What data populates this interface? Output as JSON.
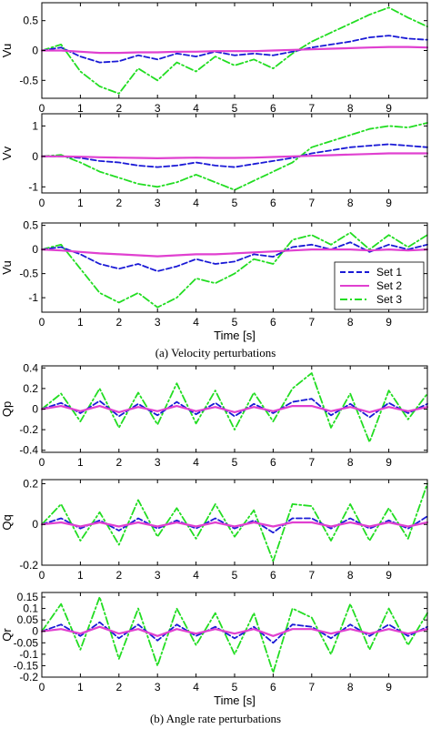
{
  "figure": {
    "captions": [
      "(a) Velocity perturbations",
      "(b) Angle rate perturbations"
    ]
  },
  "legend": {
    "entries": [
      {
        "label": "Set 1",
        "color": "#1a1ad6",
        "dash": "dashed"
      },
      {
        "label": "Set 2",
        "color": "#e040d0",
        "dash": "solid"
      },
      {
        "label": "Set 3",
        "color": "#22dd22",
        "dash": "dashdot"
      }
    ]
  },
  "chart_data": [
    {
      "type": "line",
      "ylabel": "Vu",
      "xlabel": "",
      "xlim": [
        0,
        10
      ],
      "ylim": [
        -0.8,
        0.8
      ],
      "xticks": [
        0,
        1,
        2,
        3,
        4,
        5,
        6,
        7,
        8,
        9
      ],
      "yticks": [
        -0.5,
        0,
        0.5
      ],
      "ytick_labels": [
        "-0.5",
        "0",
        "0.5"
      ],
      "x": [
        0,
        0.5,
        1,
        1.5,
        2,
        2.5,
        3,
        3.5,
        4,
        4.5,
        5,
        5.5,
        6,
        6.5,
        7,
        7.5,
        8,
        8.5,
        9,
        9.5,
        10
      ],
      "series": [
        {
          "name": "Set 1",
          "values": [
            0,
            0.05,
            -0.1,
            -0.2,
            -0.18,
            -0.08,
            -0.15,
            -0.05,
            -0.1,
            -0.02,
            -0.08,
            -0.05,
            -0.08,
            -0.02,
            0.05,
            0.1,
            0.15,
            0.22,
            0.25,
            0.2,
            0.18
          ]
        },
        {
          "name": "Set 2",
          "values": [
            0,
            0,
            -0.02,
            -0.04,
            -0.04,
            -0.03,
            -0.03,
            -0.02,
            -0.02,
            -0.01,
            -0.01,
            -0.01,
            0,
            0.01,
            0.02,
            0.03,
            0.04,
            0.05,
            0.06,
            0.06,
            0.05
          ]
        },
        {
          "name": "Set 3",
          "values": [
            0,
            0.1,
            -0.35,
            -0.6,
            -0.72,
            -0.3,
            -0.5,
            -0.2,
            -0.35,
            -0.1,
            -0.25,
            -0.15,
            -0.3,
            -0.05,
            0.15,
            0.3,
            0.45,
            0.6,
            0.72,
            0.55,
            0.4
          ]
        }
      ]
    },
    {
      "type": "line",
      "ylabel": "Vv",
      "xlabel": "",
      "xlim": [
        0,
        10
      ],
      "ylim": [
        -1.2,
        1.4
      ],
      "xticks": [
        0,
        1,
        2,
        3,
        4,
        5,
        6,
        7,
        8,
        9
      ],
      "yticks": [
        -1,
        0,
        1
      ],
      "ytick_labels": [
        "-1",
        "0",
        "1"
      ],
      "x": [
        0,
        0.5,
        1,
        1.5,
        2,
        2.5,
        3,
        3.5,
        4,
        4.5,
        5,
        5.5,
        6,
        6.5,
        7,
        7.5,
        8,
        8.5,
        9,
        9.5,
        10
      ],
      "series": [
        {
          "name": "Set 1",
          "values": [
            0,
            0,
            -0.05,
            -0.15,
            -0.2,
            -0.3,
            -0.35,
            -0.3,
            -0.2,
            -0.3,
            -0.35,
            -0.25,
            -0.15,
            -0.05,
            0.1,
            0.2,
            0.3,
            0.35,
            0.4,
            0.35,
            0.3
          ]
        },
        {
          "name": "Set 2",
          "values": [
            0,
            0,
            -0.01,
            -0.03,
            -0.04,
            -0.05,
            -0.06,
            -0.05,
            -0.04,
            -0.05,
            -0.05,
            -0.04,
            -0.02,
            0,
            0.02,
            0.04,
            0.06,
            0.08,
            0.1,
            0.1,
            0.1
          ]
        },
        {
          "name": "Set 3",
          "values": [
            0,
            0.05,
            -0.2,
            -0.5,
            -0.7,
            -0.9,
            -1.0,
            -0.85,
            -0.6,
            -0.85,
            -1.1,
            -0.8,
            -0.5,
            -0.2,
            0.3,
            0.5,
            0.7,
            0.9,
            1.0,
            0.95,
            1.1
          ]
        }
      ]
    },
    {
      "type": "line",
      "ylabel": "Vu",
      "xlabel": "Time [s]",
      "xlim": [
        0,
        10
      ],
      "ylim": [
        -1.3,
        0.55
      ],
      "xticks": [
        0,
        1,
        2,
        3,
        4,
        5,
        6,
        7,
        8,
        9
      ],
      "yticks": [
        -1,
        -0.5,
        0,
        0.5
      ],
      "ytick_labels": [
        "-1",
        "-0.5",
        "0",
        "0.5"
      ],
      "x": [
        0,
        0.5,
        1,
        1.5,
        2,
        2.5,
        3,
        3.5,
        4,
        4.5,
        5,
        5.5,
        6,
        6.5,
        7,
        7.5,
        8,
        8.5,
        9,
        9.5,
        10
      ],
      "series": [
        {
          "name": "Set 1",
          "values": [
            0,
            0.05,
            -0.1,
            -0.3,
            -0.4,
            -0.3,
            -0.45,
            -0.35,
            -0.2,
            -0.3,
            -0.25,
            -0.1,
            -0.15,
            0.05,
            0.1,
            0.0,
            0.15,
            -0.05,
            0.1,
            0.0,
            0.1
          ]
        },
        {
          "name": "Set 2",
          "values": [
            0,
            -0.02,
            -0.05,
            -0.08,
            -0.1,
            -0.12,
            -0.14,
            -0.12,
            -0.1,
            -0.1,
            -0.08,
            -0.06,
            -0.04,
            -0.02,
            0,
            0,
            0,
            -0.02,
            0,
            -0.02,
            0
          ]
        },
        {
          "name": "Set 3",
          "values": [
            0,
            0.1,
            -0.4,
            -0.9,
            -1.1,
            -0.9,
            -1.2,
            -1.0,
            -0.6,
            -0.7,
            -0.5,
            -0.2,
            -0.3,
            0.2,
            0.3,
            0.1,
            0.35,
            0.0,
            0.3,
            0.05,
            0.3
          ]
        }
      ]
    },
    {
      "type": "line",
      "ylabel": "Qp",
      "xlabel": "",
      "xlim": [
        0,
        10
      ],
      "ylim": [
        -0.42,
        0.42
      ],
      "xticks": [
        0,
        1,
        2,
        3,
        4,
        5,
        6,
        7,
        8,
        9
      ],
      "yticks": [
        -0.4,
        -0.2,
        0,
        0.2,
        0.4
      ],
      "ytick_labels": [
        "-0.4",
        "-0.2",
        "0",
        "0.2",
        "0.4"
      ],
      "x": [
        0,
        0.5,
        1,
        1.5,
        2,
        2.5,
        3,
        3.5,
        4,
        4.5,
        5,
        5.5,
        6,
        6.5,
        7,
        7.5,
        8,
        8.5,
        9,
        9.5,
        10
      ],
      "series": [
        {
          "name": "Set 1",
          "values": [
            0,
            0.06,
            -0.04,
            0.08,
            -0.07,
            0.05,
            -0.06,
            0.07,
            -0.05,
            0.06,
            -0.07,
            0.05,
            -0.04,
            0.07,
            0.1,
            -0.06,
            0.05,
            -0.08,
            0.06,
            -0.04,
            0.05
          ]
        },
        {
          "name": "Set 2",
          "values": [
            0,
            0.03,
            -0.02,
            0.03,
            -0.03,
            0.02,
            -0.02,
            0.03,
            -0.02,
            0.02,
            -0.03,
            0.02,
            -0.02,
            0.03,
            0.03,
            -0.02,
            0.02,
            -0.03,
            0.02,
            -0.02,
            0.02
          ]
        },
        {
          "name": "Set 3",
          "values": [
            0,
            0.15,
            -0.12,
            0.2,
            -0.18,
            0.16,
            -0.15,
            0.25,
            -0.14,
            0.18,
            -0.2,
            0.16,
            -0.12,
            0.2,
            0.35,
            -0.18,
            0.15,
            -0.32,
            0.18,
            -0.1,
            0.15
          ]
        }
      ]
    },
    {
      "type": "line",
      "ylabel": "Qq",
      "xlabel": "",
      "xlim": [
        0,
        10
      ],
      "ylim": [
        -0.2,
        0.22
      ],
      "xticks": [
        0,
        1,
        2,
        3,
        4,
        5,
        6,
        7,
        8,
        9
      ],
      "yticks": [
        -0.2,
        0,
        0.2
      ],
      "ytick_labels": [
        "-0.2",
        "0",
        "0.2"
      ],
      "x": [
        0,
        0.5,
        1,
        1.5,
        2,
        2.5,
        3,
        3.5,
        4,
        4.5,
        5,
        5.5,
        6,
        6.5,
        7,
        7.5,
        8,
        8.5,
        9,
        9.5,
        10
      ],
      "series": [
        {
          "name": "Set 1",
          "values": [
            0,
            0.03,
            -0.02,
            0.02,
            -0.03,
            0.03,
            -0.02,
            0.02,
            -0.02,
            0.03,
            -0.02,
            0.02,
            -0.04,
            0.03,
            0.03,
            -0.02,
            0.03,
            -0.02,
            0.02,
            -0.02,
            0.04
          ]
        },
        {
          "name": "Set 2",
          "values": [
            0,
            0.01,
            -0.01,
            0.01,
            -0.01,
            0.01,
            -0.01,
            0.01,
            -0.01,
            0.01,
            -0.01,
            0.01,
            -0.01,
            0.01,
            0.01,
            -0.01,
            0.01,
            -0.01,
            0.01,
            -0.01,
            0.01
          ]
        },
        {
          "name": "Set 3",
          "values": [
            0,
            0.1,
            -0.08,
            0.06,
            -0.1,
            0.12,
            -0.06,
            0.08,
            -0.07,
            0.1,
            -0.06,
            0.07,
            -0.18,
            0.1,
            0.09,
            -0.08,
            0.1,
            -0.08,
            0.08,
            -0.07,
            0.2
          ]
        }
      ]
    },
    {
      "type": "line",
      "ylabel": "Qr",
      "xlabel": "Time [s]",
      "xlim": [
        0,
        10
      ],
      "ylim": [
        -0.2,
        0.17
      ],
      "xticks": [
        0,
        1,
        2,
        3,
        4,
        5,
        6,
        7,
        8,
        9
      ],
      "yticks": [
        -0.2,
        -0.15,
        -0.1,
        -0.05,
        0,
        0.05,
        0.1,
        0.15
      ],
      "ytick_labels": [
        "-0.2",
        "-0.15",
        "-0.1",
        "-0.05",
        "0",
        "0.05",
        "0.1",
        "0.15"
      ],
      "x": [
        0,
        0.5,
        1,
        1.5,
        2,
        2.5,
        3,
        3.5,
        4,
        4.5,
        5,
        5.5,
        6,
        6.5,
        7,
        7.5,
        8,
        8.5,
        9,
        9.5,
        10
      ],
      "series": [
        {
          "name": "Set 1",
          "values": [
            0,
            0.03,
            -0.02,
            0.04,
            -0.03,
            0.03,
            -0.04,
            0.03,
            -0.02,
            0.02,
            -0.03,
            0.02,
            -0.05,
            0.03,
            0.02,
            -0.03,
            0.03,
            -0.02,
            0.03,
            -0.02,
            0.02
          ]
        },
        {
          "name": "Set 2",
          "values": [
            0,
            0.01,
            -0.01,
            0.02,
            -0.01,
            0.01,
            -0.02,
            0.01,
            -0.01,
            0.01,
            -0.01,
            0.01,
            -0.02,
            0.01,
            0.01,
            -0.01,
            0.01,
            -0.01,
            0.01,
            -0.01,
            0.01
          ]
        },
        {
          "name": "Set 3",
          "values": [
            0,
            0.12,
            -0.08,
            0.15,
            -0.12,
            0.1,
            -0.15,
            0.1,
            -0.06,
            0.08,
            -0.1,
            0.08,
            -0.18,
            0.1,
            0.06,
            -0.1,
            0.12,
            -0.08,
            0.1,
            -0.06,
            0.08
          ]
        }
      ]
    }
  ]
}
